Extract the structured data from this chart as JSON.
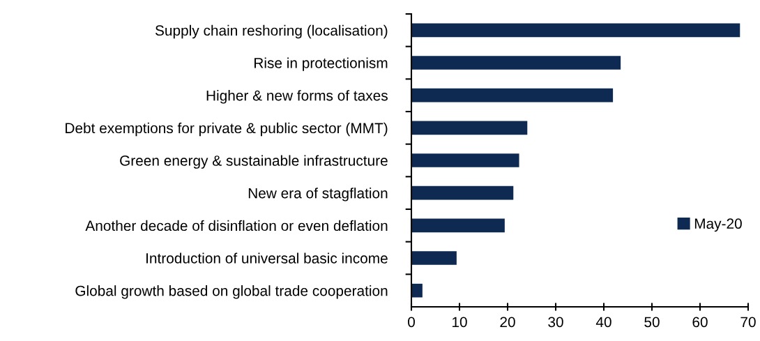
{
  "chart_data": {
    "type": "bar",
    "orientation": "horizontal",
    "categories": [
      "Supply chain reshoring (localisation)",
      "Rise in protectionism",
      "Higher & new forms of taxes",
      "Debt exemptions for private & public sector (MMT)",
      "Green energy & sustainable infrastructure",
      "New era of stagflation",
      "Another decade of disinflation or even deflation",
      "Introduction of universal basic income",
      "Global growth based on global trade cooperation"
    ],
    "series": [
      {
        "name": "May-20",
        "color": "#0f2a52",
        "values": [
          68.3,
          43.5,
          41.9,
          24.1,
          22.4,
          21.2,
          19.4,
          9.4,
          2.3
        ]
      }
    ],
    "xlim": [
      0,
      70
    ],
    "xticks": [
      0,
      10,
      20,
      30,
      40,
      50,
      60,
      70
    ],
    "grid": false,
    "legend": "right"
  }
}
